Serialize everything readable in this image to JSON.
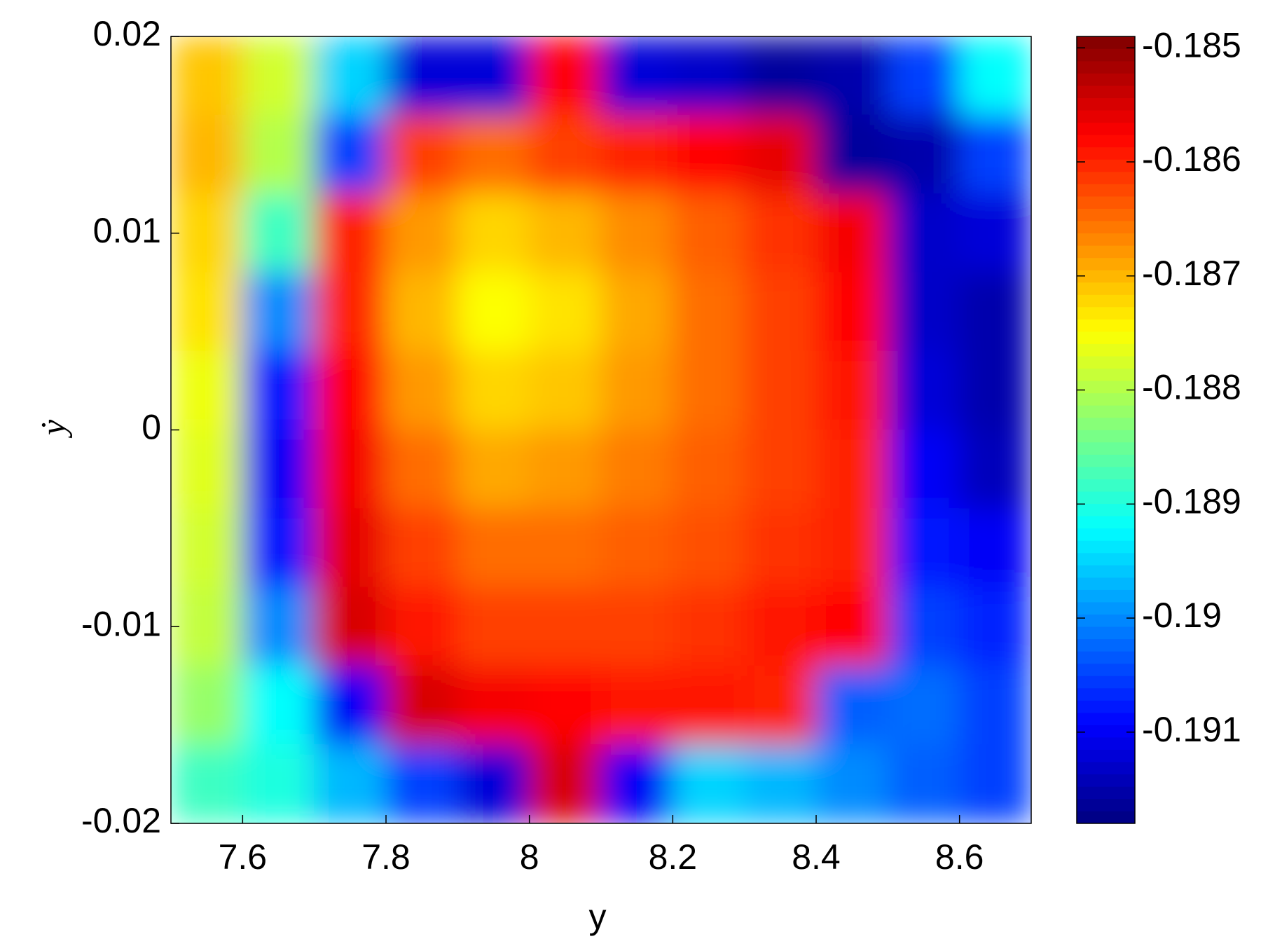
{
  "chart_data": {
    "type": "heatmap",
    "xlabel": "y",
    "ylabel": "ẏ",
    "colormap": "jet",
    "x": [
      7.55,
      7.65,
      7.75,
      7.85,
      7.95,
      8.05,
      8.15,
      8.25,
      8.35,
      8.45,
      8.55,
      8.65
    ],
    "y": [
      0.018,
      0.014,
      0.01,
      0.006,
      0.002,
      -0.002,
      -0.006,
      -0.01,
      -0.014,
      -0.018
    ],
    "values": [
      [
        -0.1871,
        -0.1878,
        -0.1895,
        -0.1912,
        -0.1912,
        -0.1858,
        -0.1912,
        -0.1913,
        -0.1916,
        -0.1915,
        -0.1905,
        -0.1892
      ],
      [
        -0.187,
        -0.188,
        -0.1905,
        -0.1862,
        -0.1865,
        -0.1862,
        -0.186,
        -0.1858,
        -0.1856,
        -0.1916,
        -0.1915,
        -0.1905
      ],
      [
        -0.1872,
        -0.1888,
        -0.186,
        -0.1868,
        -0.1872,
        -0.187,
        -0.1867,
        -0.1864,
        -0.1861,
        -0.1857,
        -0.1913,
        -0.1912
      ],
      [
        -0.1873,
        -0.19,
        -0.186,
        -0.187,
        -0.1875,
        -0.1873,
        -0.1869,
        -0.1865,
        -0.1862,
        -0.1858,
        -0.1913,
        -0.1915
      ],
      [
        -0.1876,
        -0.1908,
        -0.1858,
        -0.1868,
        -0.1872,
        -0.1871,
        -0.1868,
        -0.1865,
        -0.1862,
        -0.1859,
        -0.1912,
        -0.1915
      ],
      [
        -0.1877,
        -0.191,
        -0.1857,
        -0.1865,
        -0.1869,
        -0.1868,
        -0.1866,
        -0.1864,
        -0.1862,
        -0.186,
        -0.191,
        -0.1914
      ],
      [
        -0.1878,
        -0.1908,
        -0.1856,
        -0.1862,
        -0.1865,
        -0.1865,
        -0.1864,
        -0.1863,
        -0.1861,
        -0.186,
        -0.1908,
        -0.191
      ],
      [
        -0.1879,
        -0.19,
        -0.1855,
        -0.1859,
        -0.1862,
        -0.1862,
        -0.1862,
        -0.1861,
        -0.1859,
        -0.1858,
        -0.1905,
        -0.1907
      ],
      [
        -0.1882,
        -0.1892,
        -0.191,
        -0.1855,
        -0.1857,
        -0.1858,
        -0.1859,
        -0.1859,
        -0.186,
        -0.1903,
        -0.1902,
        -0.1905
      ],
      [
        -0.1888,
        -0.189,
        -0.1897,
        -0.1905,
        -0.1912,
        -0.1855,
        -0.191,
        -0.1895,
        -0.1897,
        -0.19,
        -0.1903,
        -0.1905
      ]
    ],
    "xlim": [
      7.5,
      8.7
    ],
    "xticks": [
      7.6,
      7.8,
      8,
      8.2,
      8.4,
      8.6
    ],
    "ylim": [
      -0.02,
      0.02
    ],
    "yticks": [
      -0.02,
      -0.01,
      0,
      0.01,
      0.02
    ],
    "clim": [
      -0.1918,
      -0.1849
    ],
    "cticks": [
      -0.191,
      -0.19,
      -0.189,
      -0.188,
      -0.187,
      -0.186,
      -0.185
    ]
  }
}
